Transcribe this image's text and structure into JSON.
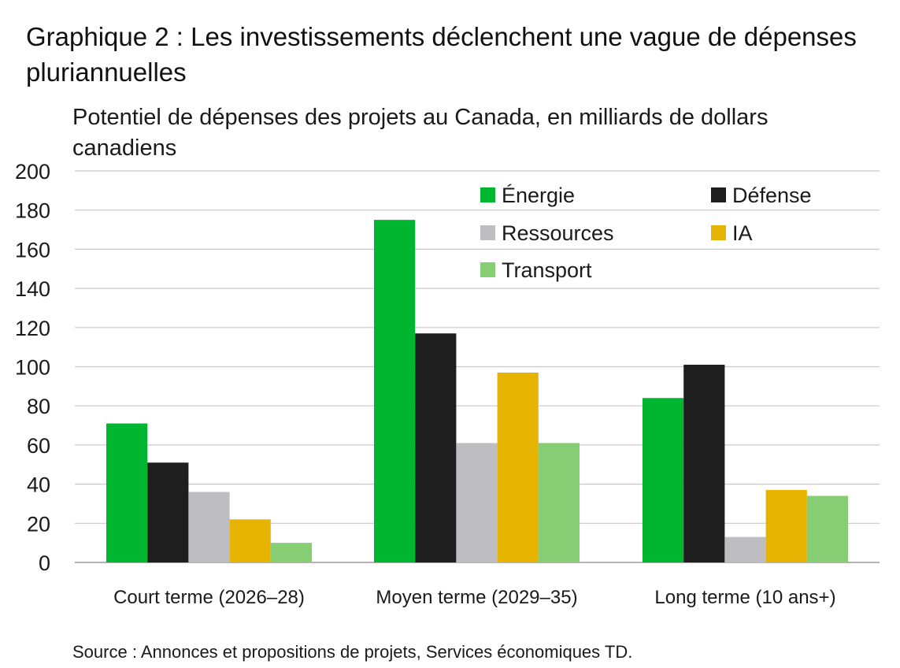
{
  "title": "Graphique 2 : Les investissements déclenchent une vague de dépenses pluriannuelles",
  "subtitle": "Potentiel de dépenses des projets au Canada, en milliards de dollars canadiens",
  "source": "Source : Annonces et propositions de projets, Services économiques TD.",
  "chart_data": {
    "type": "bar",
    "categories": [
      "Court terme (2026–28)",
      "Moyen terme (2029–35)",
      "Long terme (10 ans+)"
    ],
    "series": [
      {
        "name": "Énergie",
        "color": "#00b52f",
        "values": [
          71,
          175,
          84
        ]
      },
      {
        "name": "Défense",
        "color": "#1e1e1e",
        "values": [
          51,
          117,
          101
        ]
      },
      {
        "name": "Ressources",
        "color": "#bebdc1",
        "values": [
          36,
          61,
          13
        ]
      },
      {
        "name": "IA",
        "color": "#e6b300",
        "values": [
          22,
          97,
          37
        ]
      },
      {
        "name": "Transport",
        "color": "#86cd73",
        "values": [
          10,
          61,
          34
        ]
      }
    ],
    "ylim": [
      0,
      200
    ],
    "yticks": [
      0,
      20,
      40,
      60,
      80,
      100,
      120,
      140,
      160,
      180,
      200
    ],
    "grid": true,
    "legend_position": "top-right"
  }
}
